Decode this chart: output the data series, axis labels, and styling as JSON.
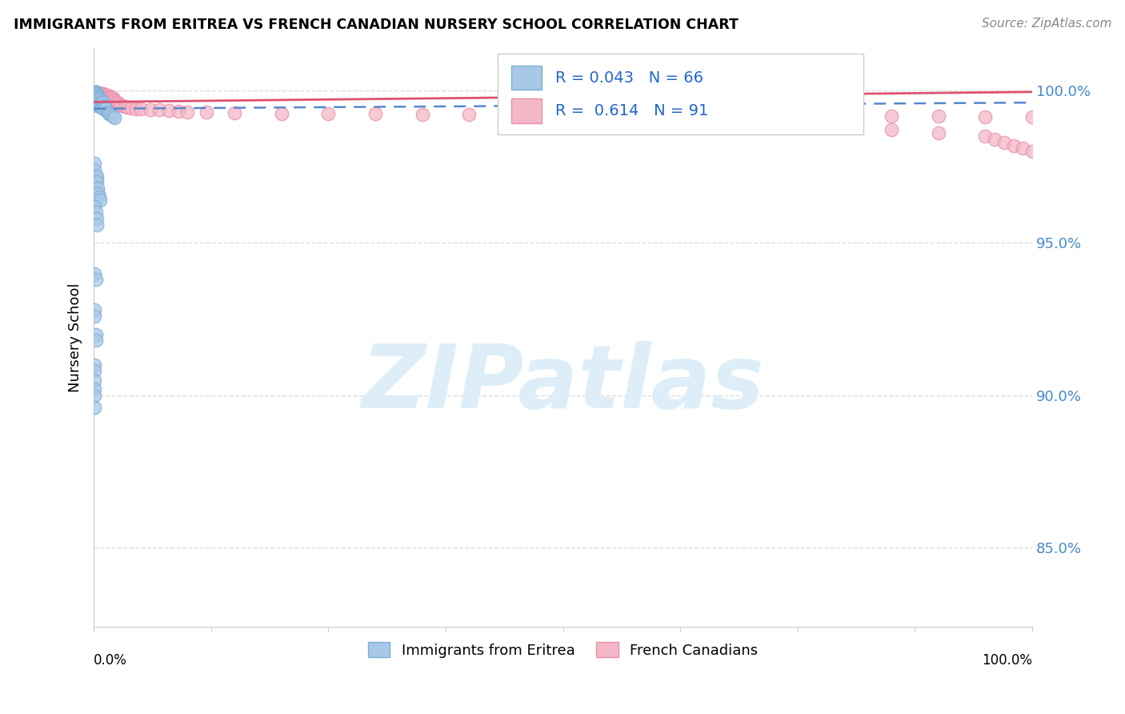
{
  "title": "IMMIGRANTS FROM ERITREA VS FRENCH CANADIAN NURSERY SCHOOL CORRELATION CHART",
  "source": "Source: ZipAtlas.com",
  "ylabel": "Nursery School",
  "ytick_labels": [
    "100.0%",
    "95.0%",
    "90.0%",
    "85.0%"
  ],
  "ytick_values": [
    1.0,
    0.95,
    0.9,
    0.85
  ],
  "xlim": [
    0.0,
    1.0
  ],
  "ylim": [
    0.824,
    1.014
  ],
  "legend_blue_label": "Immigrants from Eritrea",
  "legend_pink_label": "French Canadians",
  "R_blue": 0.043,
  "N_blue": 66,
  "R_pink": 0.614,
  "N_pink": 91,
  "blue_color": "#a8c8e8",
  "blue_edge_color": "#7bafd4",
  "pink_color": "#f4b8c8",
  "pink_edge_color": "#e890a8",
  "trendline_blue_color": "#5588cc",
  "trendline_pink_color": "#e05070",
  "watermark_color": "#ddeef8",
  "grid_color": "#dddddd",
  "background_color": "#ffffff",
  "blue_x": [
    0.001,
    0.001,
    0.001,
    0.001,
    0.001,
    0.001,
    0.002,
    0.002,
    0.002,
    0.002,
    0.002,
    0.002,
    0.003,
    0.003,
    0.003,
    0.003,
    0.003,
    0.004,
    0.004,
    0.004,
    0.005,
    0.005,
    0.005,
    0.006,
    0.006,
    0.007,
    0.007,
    0.008,
    0.008,
    0.009,
    0.01,
    0.01,
    0.011,
    0.012,
    0.013,
    0.015,
    0.016,
    0.018,
    0.02,
    0.022,
    0.001,
    0.001,
    0.002,
    0.002,
    0.003,
    0.003,
    0.004,
    0.005,
    0.006,
    0.007,
    0.001,
    0.002,
    0.003,
    0.003,
    0.001,
    0.002,
    0.001,
    0.001,
    0.002,
    0.002,
    0.001,
    0.001,
    0.001,
    0.001,
    0.001,
    0.001
  ],
  "blue_y": [
    0.9995,
    0.999,
    0.9985,
    0.998,
    0.9975,
    0.997,
    0.9995,
    0.999,
    0.9985,
    0.998,
    0.9975,
    0.996,
    0.999,
    0.9985,
    0.998,
    0.997,
    0.995,
    0.9985,
    0.9975,
    0.996,
    0.998,
    0.997,
    0.995,
    0.9975,
    0.996,
    0.997,
    0.995,
    0.9965,
    0.9945,
    0.996,
    0.996,
    0.994,
    0.995,
    0.9945,
    0.994,
    0.993,
    0.9925,
    0.992,
    0.9915,
    0.991,
    0.976,
    0.974,
    0.972,
    0.97,
    0.972,
    0.97,
    0.968,
    0.966,
    0.965,
    0.964,
    0.962,
    0.96,
    0.958,
    0.956,
    0.94,
    0.938,
    0.928,
    0.926,
    0.92,
    0.918,
    0.91,
    0.908,
    0.905,
    0.902,
    0.9,
    0.896
  ],
  "pink_x": [
    0.001,
    0.001,
    0.001,
    0.001,
    0.002,
    0.002,
    0.002,
    0.002,
    0.003,
    0.003,
    0.003,
    0.003,
    0.004,
    0.004,
    0.004,
    0.005,
    0.005,
    0.005,
    0.006,
    0.006,
    0.006,
    0.007,
    0.007,
    0.007,
    0.008,
    0.008,
    0.008,
    0.009,
    0.009,
    0.01,
    0.01,
    0.01,
    0.011,
    0.011,
    0.012,
    0.012,
    0.013,
    0.013,
    0.014,
    0.015,
    0.015,
    0.016,
    0.017,
    0.018,
    0.019,
    0.02,
    0.021,
    0.022,
    0.023,
    0.025,
    0.027,
    0.03,
    0.033,
    0.036,
    0.04,
    0.045,
    0.05,
    0.06,
    0.07,
    0.08,
    0.09,
    0.1,
    0.12,
    0.15,
    0.2,
    0.25,
    0.3,
    0.35,
    0.4,
    0.45,
    0.5,
    0.55,
    0.6,
    0.65,
    0.7,
    0.75,
    0.8,
    0.85,
    0.9,
    0.95,
    1.0,
    0.85,
    0.9,
    0.95,
    0.96,
    0.97,
    0.98,
    0.99,
    1.0,
    0.8,
    0.75
  ],
  "pink_y": [
    0.9995,
    0.999,
    0.9985,
    0.998,
    0.9995,
    0.999,
    0.9985,
    0.9975,
    0.9995,
    0.999,
    0.9985,
    0.9975,
    0.999,
    0.9985,
    0.9975,
    0.999,
    0.9985,
    0.9975,
    0.999,
    0.9985,
    0.9975,
    0.999,
    0.9985,
    0.9975,
    0.999,
    0.9985,
    0.9975,
    0.999,
    0.9985,
    0.999,
    0.9985,
    0.9975,
    0.9985,
    0.9975,
    0.9985,
    0.9975,
    0.9985,
    0.9975,
    0.998,
    0.9985,
    0.9975,
    0.998,
    0.9975,
    0.9975,
    0.997,
    0.9975,
    0.997,
    0.9965,
    0.996,
    0.996,
    0.9955,
    0.995,
    0.9948,
    0.9945,
    0.9943,
    0.994,
    0.994,
    0.9938,
    0.9936,
    0.9934,
    0.9932,
    0.993,
    0.9928,
    0.9926,
    0.9925,
    0.9924,
    0.9923,
    0.9922,
    0.9921,
    0.992,
    0.992,
    0.9919,
    0.9918,
    0.9917,
    0.9917,
    0.9916,
    0.9916,
    0.9915,
    0.9915,
    0.9914,
    0.9914,
    0.987,
    0.986,
    0.985,
    0.984,
    0.983,
    0.982,
    0.981,
    0.98,
    0.988,
    0.989
  ]
}
